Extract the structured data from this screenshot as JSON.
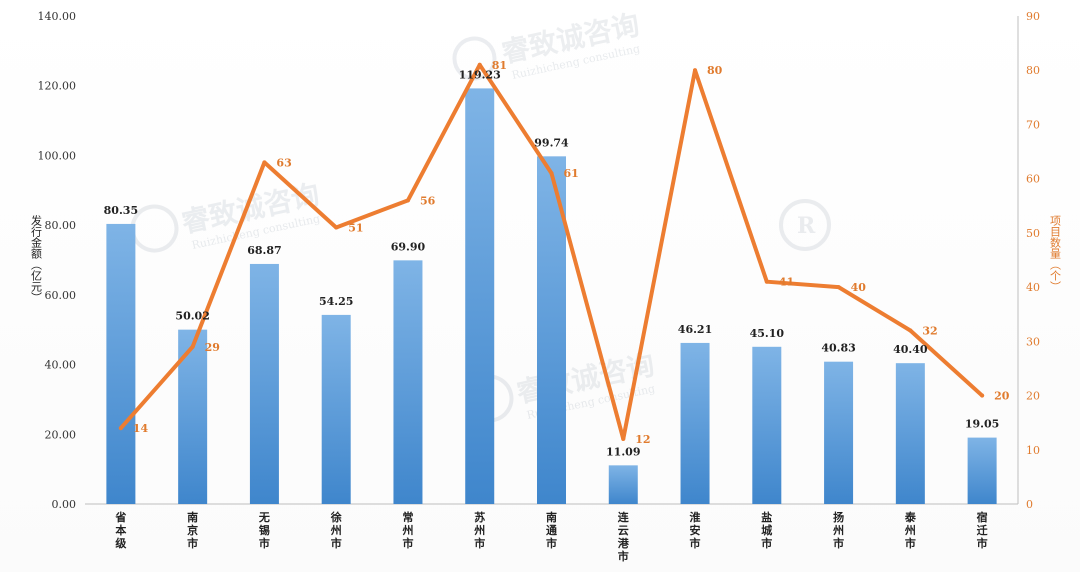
{
  "chart_data": {
    "type": "bar",
    "categories": [
      "省本级",
      "南京市",
      "无锡市",
      "徐州市",
      "常州市",
      "苏州市",
      "南通市",
      "连云港市",
      "淮安市",
      "盐城市",
      "扬州市",
      "泰州市",
      "宿迁市"
    ],
    "series": [
      {
        "type": "bar",
        "axis": "left",
        "values": [
          80.35,
          50.02,
          68.87,
          54.25,
          69.9,
          119.23,
          99.74,
          11.09,
          46.21,
          45.1,
          40.83,
          40.4,
          19.05
        ],
        "labels": [
          "80.35",
          "50.02",
          "68.87",
          "54.25",
          "69.90",
          "119.23",
          "99.74",
          "11.09",
          "46.21",
          "45.10",
          "40.83",
          "40.40",
          "19.05"
        ],
        "color": "#5b9bd5"
      },
      {
        "type": "line",
        "axis": "right",
        "values": [
          14,
          29,
          63,
          51,
          56,
          81,
          61,
          12,
          80,
          41,
          40,
          32,
          20
        ],
        "labels": [
          "14",
          "29",
          "63",
          "51",
          "56",
          "81",
          "61",
          "12",
          "80",
          "41",
          "40",
          "32",
          "20"
        ],
        "color": "#ed7d31"
      }
    ],
    "ylabel": "发行金额（亿元）",
    "y2label": "项目数量（个）",
    "ylim": [
      0,
      140
    ],
    "y2lim": [
      0,
      90
    ],
    "yticks": [
      "0.00",
      "20.00",
      "40.00",
      "60.00",
      "80.00",
      "100.00",
      "120.00",
      "140.00"
    ],
    "y2ticks": [
      "0",
      "10",
      "20",
      "30",
      "40",
      "50",
      "60",
      "70",
      "80",
      "90"
    ],
    "grid": false,
    "legend": "none"
  },
  "watermark": {
    "text": "睿致诚咨询",
    "subtext": "Ruizhicheng consulting",
    "logo_letter": "R"
  }
}
